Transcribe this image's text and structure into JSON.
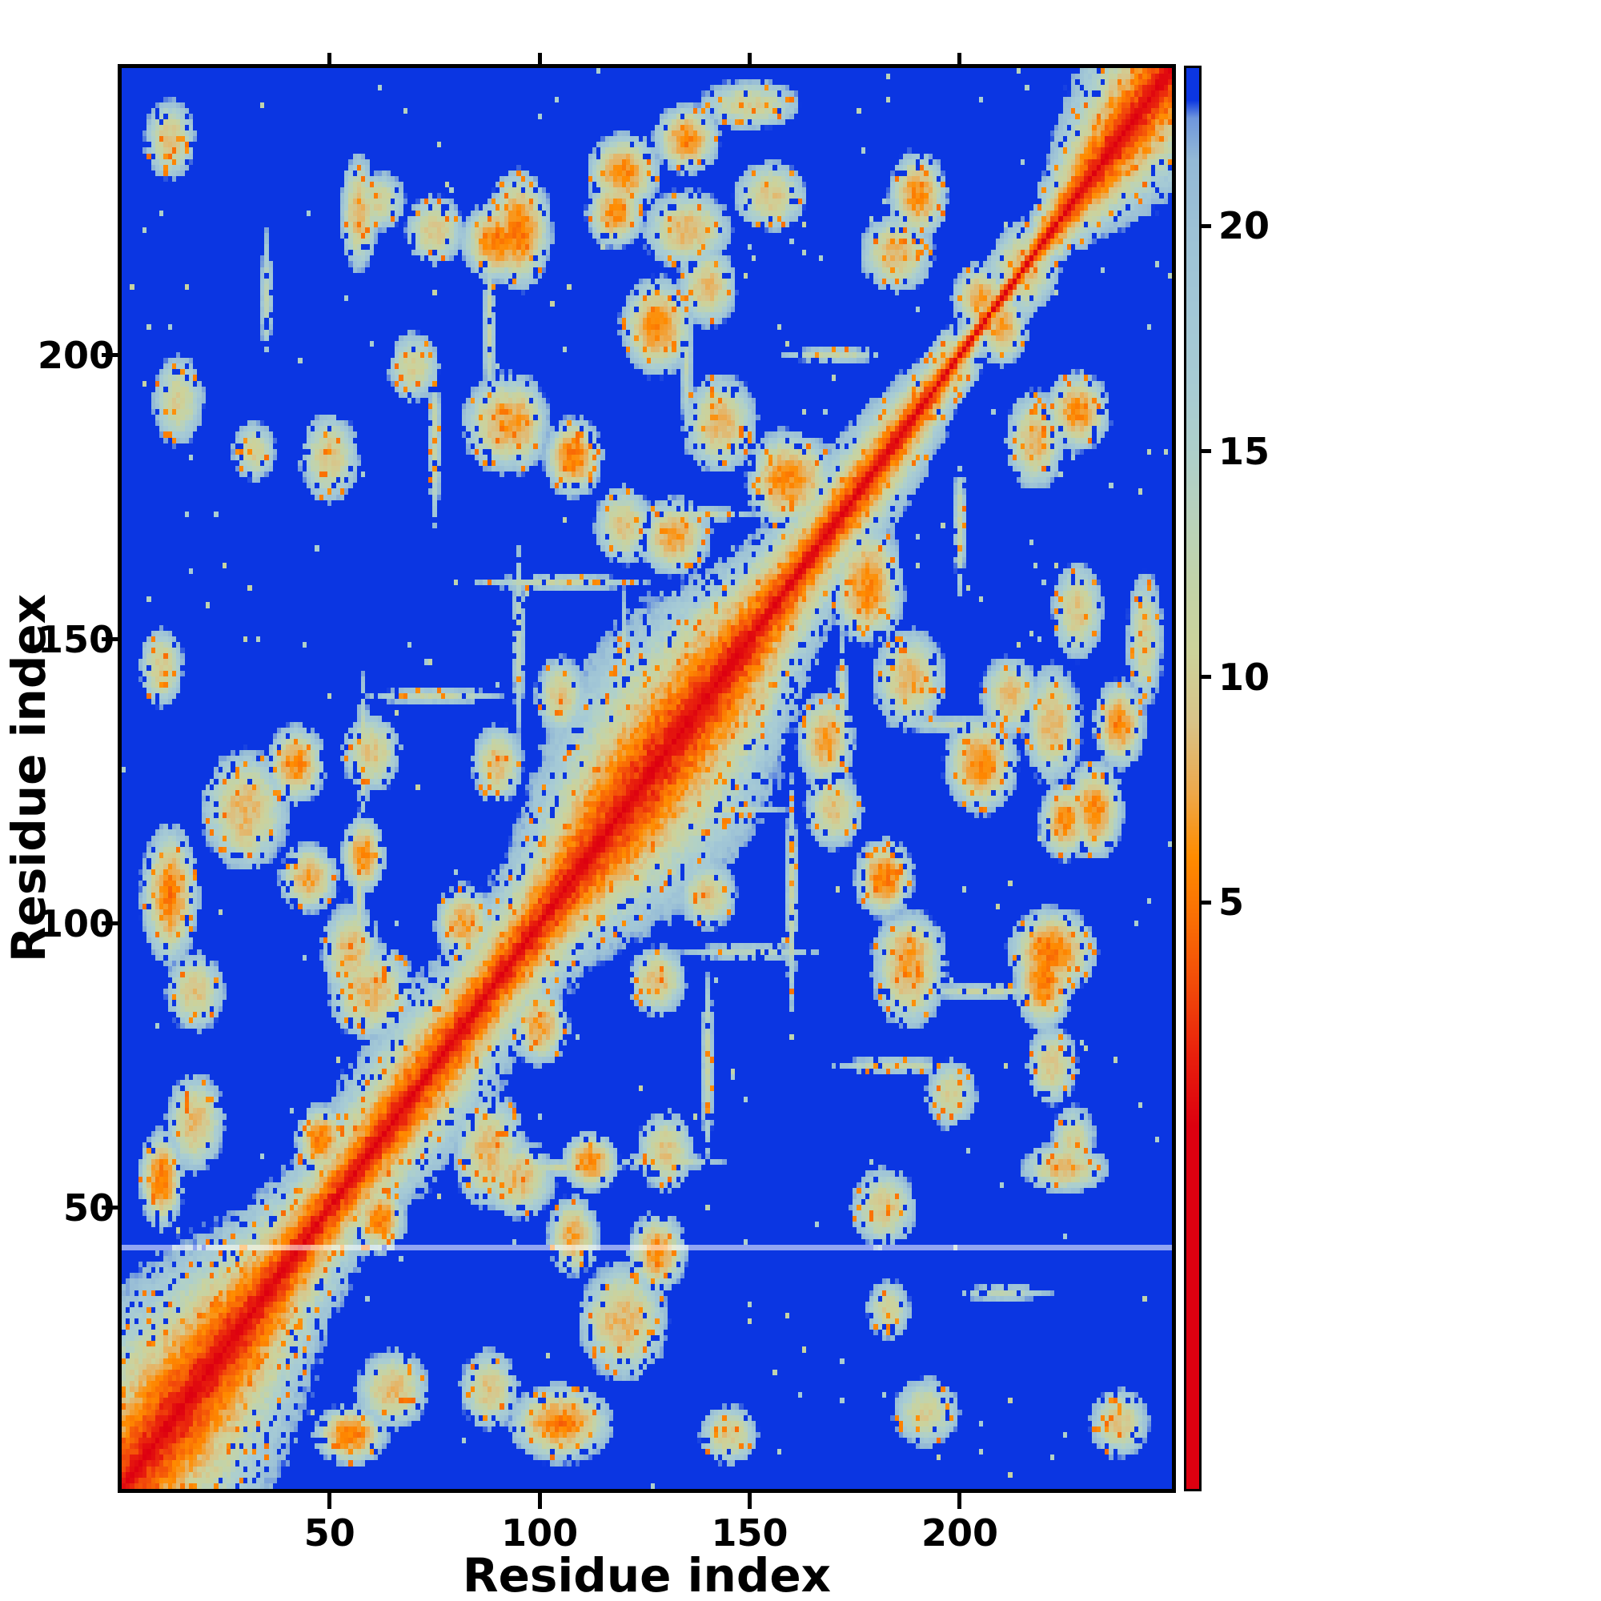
{
  "figure": {
    "background": "#ffffff"
  },
  "chart_data": {
    "type": "heatmap",
    "title": "",
    "xlabel": "Residue index",
    "ylabel": "Residue index",
    "x_ticks": [
      50,
      100,
      150,
      200
    ],
    "y_ticks": [
      50,
      100,
      150,
      200
    ],
    "axis_range": [
      1,
      250
    ],
    "n_residues": 250,
    "grid": false,
    "legend": "none",
    "colorbar": {
      "position": "right",
      "ticks": [
        5,
        10,
        15,
        20
      ],
      "vmin": -8,
      "vmax": 23.5
    },
    "colors": {
      "background_over": "#0b36e2",
      "frame": "#000000",
      "diagonal_red": "#dd0010",
      "orange": "#ff8c00",
      "pale_green": "#c9d49c",
      "pale_blue": "#a3c8d6",
      "artifact_line": "#ffffff"
    },
    "colormap_stops": [
      [
        0,
        "#dd0010"
      ],
      [
        1.5,
        "#e81e0d"
      ],
      [
        3,
        "#f1470a"
      ],
      [
        4.5,
        "#f96c05"
      ],
      [
        6,
        "#ff8c00"
      ],
      [
        7.5,
        "#edaa4e"
      ],
      [
        9,
        "#d9c489"
      ],
      [
        10.5,
        "#cdd29a"
      ],
      [
        12,
        "#c3d3a8"
      ],
      [
        13.5,
        "#b9d2bb"
      ],
      [
        15,
        "#aed0cb"
      ],
      [
        16.5,
        "#a8ccd4"
      ],
      [
        18,
        "#a3c8d6"
      ],
      [
        20,
        "#9dc2d6"
      ],
      [
        21.5,
        "#93b9d6"
      ],
      [
        22.4,
        "#6f97dd"
      ],
      [
        22.8,
        "#0b36e2"
      ]
    ],
    "diagonal": {
      "value_at_diag": 0,
      "slope": 1.3
    },
    "artifact_line_row": 43,
    "clusters": [
      {
        "x": 12,
        "y": 105,
        "rx": 6,
        "ry": 14,
        "v": 5
      },
      {
        "x": 10,
        "y": 55,
        "rx": 6,
        "ry": 10,
        "v": 5
      },
      {
        "x": 30,
        "y": 120,
        "rx": 12,
        "ry": 12,
        "v": 8
      },
      {
        "x": 42,
        "y": 128,
        "rx": 8,
        "ry": 8,
        "v": 6
      },
      {
        "x": 60,
        "y": 88,
        "rx": 12,
        "ry": 10,
        "v": 8
      },
      {
        "x": 25,
        "y": 25,
        "rx": 14,
        "ry": 10,
        "v": 7
      },
      {
        "x": 65,
        "y": 18,
        "rx": 10,
        "ry": 8,
        "v": 8
      },
      {
        "x": 105,
        "y": 12,
        "rx": 14,
        "ry": 8,
        "v": 6
      },
      {
        "x": 118,
        "y": 30,
        "rx": 10,
        "ry": 8,
        "v": 8
      },
      {
        "x": 95,
        "y": 55,
        "rx": 10,
        "ry": 8,
        "v": 8
      },
      {
        "x": 112,
        "y": 58,
        "rx": 8,
        "ry": 6,
        "v": 6
      },
      {
        "x": 122,
        "y": 118,
        "rx": 14,
        "ry": 12,
        "v": 7
      },
      {
        "x": 92,
        "y": 188,
        "rx": 12,
        "ry": 10,
        "v": 7
      },
      {
        "x": 90,
        "y": 220,
        "rx": 10,
        "ry": 8,
        "v": 5
      },
      {
        "x": 108,
        "y": 182,
        "rx": 8,
        "ry": 8,
        "v": 5
      },
      {
        "x": 132,
        "y": 168,
        "rx": 10,
        "ry": 8,
        "v": 7
      },
      {
        "x": 143,
        "y": 188,
        "rx": 10,
        "ry": 10,
        "v": 8
      },
      {
        "x": 160,
        "y": 178,
        "rx": 12,
        "ry": 10,
        "v": 6
      },
      {
        "x": 178,
        "y": 158,
        "rx": 10,
        "ry": 10,
        "v": 6
      },
      {
        "x": 150,
        "y": 140,
        "rx": 10,
        "ry": 8,
        "v": 8
      },
      {
        "x": 188,
        "y": 95,
        "rx": 10,
        "ry": 8,
        "v": 7
      },
      {
        "x": 222,
        "y": 95,
        "rx": 12,
        "ry": 9,
        "v": 5
      },
      {
        "x": 225,
        "y": 57,
        "rx": 12,
        "ry": 5,
        "v": 8
      },
      {
        "x": 182,
        "y": 50,
        "rx": 9,
        "ry": 8,
        "v": 9
      },
      {
        "x": 205,
        "y": 128,
        "rx": 10,
        "ry": 10,
        "v": 6
      },
      {
        "x": 212,
        "y": 140,
        "rx": 8,
        "ry": 8,
        "v": 8
      },
      {
        "x": 232,
        "y": 120,
        "rx": 8,
        "ry": 10,
        "v": 6
      },
      {
        "x": 135,
        "y": 222,
        "rx": 12,
        "ry": 8,
        "v": 8
      },
      {
        "x": 155,
        "y": 228,
        "rx": 10,
        "ry": 7,
        "v": 9
      },
      {
        "x": 118,
        "y": 225,
        "rx": 8,
        "ry": 7,
        "v": 6
      },
      {
        "x": 75,
        "y": 222,
        "rx": 8,
        "ry": 7,
        "v": 9
      },
      {
        "x": 185,
        "y": 218,
        "rx": 10,
        "ry": 8,
        "v": 8
      },
      {
        "x": 205,
        "y": 210,
        "rx": 8,
        "ry": 7,
        "v": 7
      },
      {
        "x": 228,
        "y": 190,
        "rx": 9,
        "ry": 8,
        "v": 6
      },
      {
        "x": 238,
        "y": 135,
        "rx": 7,
        "ry": 9,
        "v": 6
      },
      {
        "x": 60,
        "y": 130,
        "rx": 8,
        "ry": 8,
        "v": 9
      },
      {
        "x": 45,
        "y": 108,
        "rx": 8,
        "ry": 7,
        "v": 7
      },
      {
        "x": 18,
        "y": 88,
        "rx": 8,
        "ry": 8,
        "v": 9
      },
      {
        "x": 75,
        "y": 75,
        "rx": 10,
        "ry": 8,
        "v": 6
      },
      {
        "x": 52,
        "y": 52,
        "rx": 10,
        "ry": 8,
        "v": 5
      },
      {
        "x": 95,
        "y": 95,
        "rx": 10,
        "ry": 8,
        "v": 6
      },
      {
        "x": 198,
        "y": 198,
        "rx": 8,
        "ry": 6,
        "v": 7
      },
      {
        "x": 215,
        "y": 215,
        "rx": 10,
        "ry": 8,
        "v": 8
      },
      {
        "x": 170,
        "y": 120,
        "rx": 8,
        "ry": 8,
        "v": 9
      },
      {
        "x": 140,
        "y": 105,
        "rx": 8,
        "ry": 7,
        "v": 9
      },
      {
        "x": 128,
        "y": 90,
        "rx": 8,
        "ry": 7,
        "v": 8
      },
      {
        "x": 82,
        "y": 100,
        "rx": 8,
        "ry": 8,
        "v": 7
      },
      {
        "x": 48,
        "y": 62,
        "rx": 7,
        "ry": 7,
        "v": 5
      },
      {
        "x": 14,
        "y": 192,
        "rx": 7,
        "ry": 9,
        "v": 10
      },
      {
        "x": 32,
        "y": 183,
        "rx": 6,
        "ry": 6,
        "v": 10
      },
      {
        "x": 62,
        "y": 227,
        "rx": 7,
        "ry": 6,
        "v": 10
      },
      {
        "x": 145,
        "y": 10,
        "rx": 8,
        "ry": 6,
        "v": 9
      },
      {
        "x": 70,
        "y": 198,
        "rx": 7,
        "ry": 7,
        "v": 10
      },
      {
        "x": 238,
        "y": 12,
        "rx": 8,
        "ry": 7,
        "v": 9
      },
      {
        "x": 150,
        "y": 244,
        "rx": 14,
        "ry": 5,
        "v": 10
      }
    ],
    "streaks": [
      {
        "x": 88,
        "y": 205,
        "rx": 1.5,
        "ry": 18,
        "v": 12
      },
      {
        "x": 120,
        "y": 140,
        "rx": 1.5,
        "ry": 22,
        "v": 12
      },
      {
        "x": 135,
        "y": 200,
        "rx": 1.5,
        "ry": 20,
        "v": 13
      },
      {
        "x": 172,
        "y": 135,
        "rx": 1.5,
        "ry": 20,
        "v": 12
      },
      {
        "x": 57,
        "y": 105,
        "rx": 1.5,
        "ry": 18,
        "v": 12
      },
      {
        "x": 200,
        "y": 170,
        "rx": 1.5,
        "ry": 15,
        "v": 12
      },
      {
        "x": 105,
        "y": 160,
        "rx": 25,
        "ry": 1.5,
        "v": 12
      },
      {
        "x": 75,
        "y": 140,
        "rx": 20,
        "ry": 1.5,
        "v": 12
      },
      {
        "x": 150,
        "y": 95,
        "rx": 20,
        "ry": 1.5,
        "v": 13
      },
      {
        "x": 185,
        "y": 75,
        "rx": 18,
        "ry": 1.5,
        "v": 12
      },
      {
        "x": 130,
        "y": 58,
        "rx": 16,
        "ry": 1.5,
        "v": 12
      },
      {
        "x": 210,
        "y": 35,
        "rx": 14,
        "ry": 1.5,
        "v": 13
      }
    ],
    "holes": [
      {
        "x": 113,
        "y": 131,
        "r": 7
      },
      {
        "x": 63,
        "y": 75,
        "r": 6
      },
      {
        "x": 150,
        "y": 163,
        "r": 5
      },
      {
        "x": 196,
        "y": 183,
        "r": 5
      }
    ]
  }
}
